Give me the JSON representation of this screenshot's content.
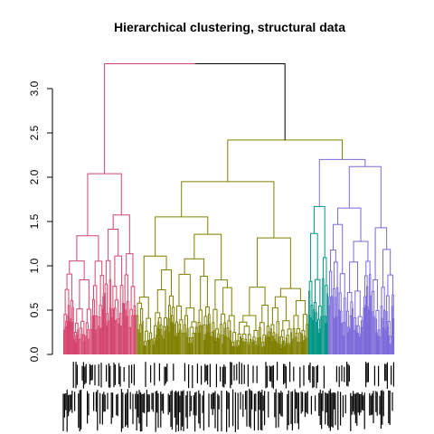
{
  "chart_data": {
    "type": "dendrogram",
    "title": "Hierarchical clustering, structural data",
    "xlabel": "",
    "ylabel": "",
    "ylim": [
      0,
      3.3
    ],
    "y_ticks": [
      0.0,
      0.5,
      1.0,
      1.5,
      2.0,
      2.5,
      3.0
    ],
    "y_tick_labels": [
      "0.0",
      "0.5",
      "1.0",
      "1.5",
      "2.0",
      "2.5",
      "3.0"
    ],
    "grid": false,
    "colors": {
      "cluster_pink": "#d4446e",
      "cluster_olive": "#7f7f00",
      "cluster_teal": "#009485",
      "cluster_purple": "#7b68d9",
      "top_branch": "#000000"
    },
    "clusters": [
      {
        "color_key": "cluster_pink",
        "leaf_share": 0.22,
        "height": 2.04
      },
      {
        "color_key": "cluster_olive",
        "leaf_share": 0.52,
        "height": 1.95
      },
      {
        "color_key": "cluster_teal",
        "leaf_share": 0.06,
        "height": 1.67
      },
      {
        "color_key": "cluster_purple",
        "leaf_share": 0.2,
        "height": 2.12
      }
    ],
    "merges": [
      {
        "join": "olive+teal/purple",
        "height": 2.42
      },
      {
        "join": "teal+purple",
        "height": 2.2
      },
      {
        "join": "root",
        "height": 3.28
      }
    ]
  }
}
